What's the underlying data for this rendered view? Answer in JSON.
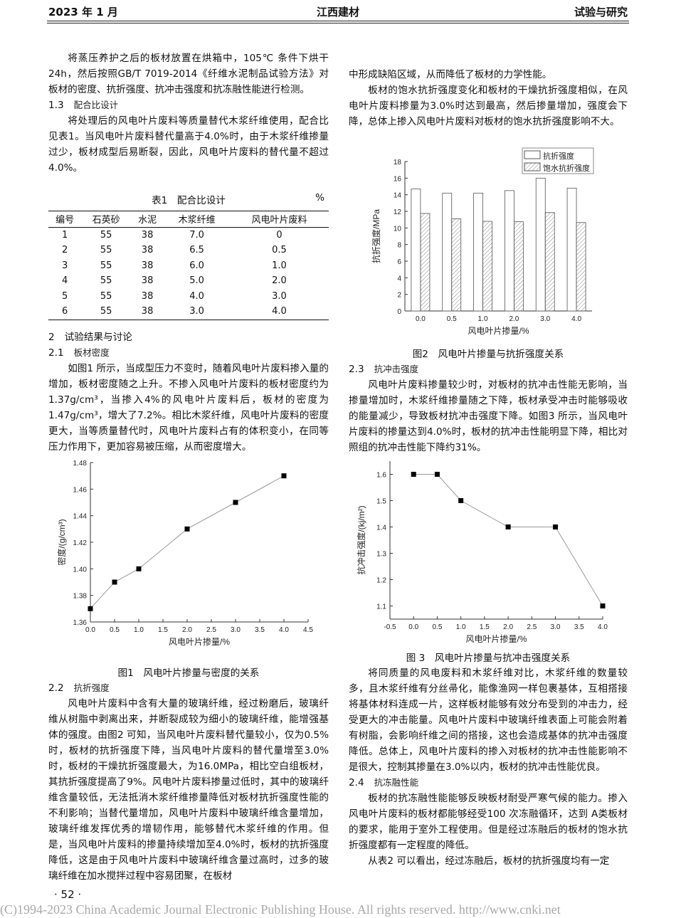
{
  "header": {
    "date": "2023 年 1 月",
    "journal": "江西建材",
    "column": "试验与研究"
  },
  "left": {
    "p1": "将蒸压养护之后的板材放置在烘箱中，105℃ 条件下烘干24h，然后按照GB/T 7019-2014《纤维水泥制品试验方法》对板材的密度、抗折强度、抗冲击强度和抗冻融性能进行检测。",
    "s13_num": "1.3",
    "s13_title": "配合比设计",
    "p2": "将处理后的风电叶片废料等质量替代木浆纤维使用，配合比见表1。当风电叶片废料替代量高于4.0%时，由于木浆纤维掺量过少，板材成型后易断裂，因此，风电叶片废料的替代量不超过4.0%。",
    "table": {
      "caption": "表1　配合比设计",
      "unit": "%",
      "headers": [
        "编号",
        "石英砂",
        "水泥",
        "木浆纤维",
        "风电叶片废料"
      ],
      "rows": [
        [
          "1",
          "55",
          "38",
          "7.0",
          "0"
        ],
        [
          "2",
          "55",
          "38",
          "6.5",
          "0.5"
        ],
        [
          "3",
          "55",
          "38",
          "6.0",
          "1.0"
        ],
        [
          "4",
          "55",
          "38",
          "5.0",
          "2.0"
        ],
        [
          "5",
          "55",
          "38",
          "4.0",
          "3.0"
        ],
        [
          "6",
          "55",
          "38",
          "3.0",
          "4.0"
        ]
      ]
    },
    "s2_num": "2",
    "s2_title": "试验结果与讨论",
    "s21_num": "2.1",
    "s21_title": "板材密度",
    "p3": "如图1 所示，当成型压力不变时，随着风电叶片废料掺入量的增加，板材密度随之上升。不掺入风电叶片废料的板材密度约为1.37g/cm³，当掺入4%的风电叶片废料后，板材的密度为1.47g/cm³，增大了7.2%。相比木浆纤维，风电叶片废料的密度更大，当等质量替代时，风电叶片废料占有的体积变小，在同等压力作用下，更加容易被压缩，从而密度增大。",
    "fig1_caption": "图1　风电叶片掺量与密度的关系",
    "s22_num": "2.2",
    "s22_title": "抗折强度",
    "p4": "风电叶片废料中含有大量的玻璃纤维，经过粉磨后，玻璃纤维从树脂中剥离出来，并断裂成较为细小的玻璃纤维，能增强基体的强度。由图2 可知，当风电叶片废料替代量较小，仅为0.5%时，板材的抗折强度下降，当风电叶片废料的替代量增至3.0%时，板材的干燥抗折强度最大，为16.0MPa，相比空白组板材，其抗折强度提高了9%。风电叶片废料掺量过低时，其中的玻璃纤维含量较低，无法抵消木浆纤维掺量降低对板材抗折强度性能的不利影响；当替代量增加，风电叶片废料中玻璃纤维含量增加，玻璃纤维发挥优秀的增韧作用，能够替代木浆纤维的作用。但是，当风电叶片废料的掺量持续增加至4.0%时，板材的抗折强度降低，这是由于风电叶片废料中玻璃纤维含量过高时，过多的玻璃纤维在加水搅拌过程中容易团聚，在板材"
  },
  "right": {
    "p1": "中形成缺陷区域，从而降低了板材的力学性能。",
    "p2": "板材的饱水抗折强度变化和板材的干燥抗折强度相似，在风电叶片废料掺量为3.0%时达到最高，然后掺量增加，强度会下降，总体上掺入风电叶片废料对板材的饱水抗折强度影响不大。",
    "fig2_caption": "图2　风电叶片掺量与抗折强度关系",
    "s23_num": "2.3",
    "s23_title": "抗冲击强度",
    "p3": "风电叶片废料掺量较少时，对板材的抗冲击性能无影响，当掺量增加时，木浆纤维掺量随之下降，板材承受冲击时能够吸收的能量减少，导致板材抗冲击强度下降。如图3 所示，当风电叶片废料的掺量达到4.0%时，板材的抗冲击性能明显下降，相比对照组的抗冲击性能下降约31%。",
    "fig3_caption": "图 3　风电叶片掺量与抗冲击强度关系",
    "p4": "将同质量的风电废料和木浆纤维对比，木浆纤维的数量较多，且木浆纤维有分丝帚化，能像渔网一样包裹基体，互相搭接将基体材料连成一片，这样板材能够有效分布受到的冲击力，经受更大的冲击能量。风电叶片废料中玻璃纤维表面上可能会附着有树脂，会影响纤维之间的搭接，这也会造成基体的抗冲击强度降低。总体上，风电叶片废料的掺入对板材的抗冲击性能影响不是很大，控制其掺量在3.0%以内，板材的抗冲击性能优良。",
    "s24_num": "2.4",
    "s24_title": "抗冻融性能",
    "p5": "板材的抗冻融性能能够反映板材耐受严寒气候的能力。掺入风电叶片废料的板材都能够经受100 次冻融循环，达到 A类板材的要求，能用于室外工程使用。但是经过冻融后的板材的饱水抗折强度都有一定程度的降低。",
    "p6": "从表2 可以看出，经过冻融后，板材的抗折强度均有一定"
  },
  "footer": {
    "page": "· 52 ·",
    "copyright": "(C)1994-2023 China Academic Journal Electronic Publishing House. All rights reserved.    http://www.cnki.net"
  },
  "chart_data": [
    {
      "type": "line",
      "x": [
        0.0,
        0.5,
        1.0,
        2.0,
        3.0,
        4.0
      ],
      "values": [
        1.37,
        1.39,
        1.4,
        1.43,
        1.45,
        1.47
      ],
      "xlabel": "风电叶片掺量/%",
      "ylabel": "密度/(g/cm³)",
      "xlim": [
        0,
        4.5
      ],
      "ylim": [
        1.36,
        1.48
      ],
      "xticks": [
        "0.0",
        "0.5",
        "1.0",
        "1.5",
        "2.0",
        "2.5",
        "3.0",
        "3.5",
        "4.0",
        "4.5"
      ],
      "yticks": [
        "1.36",
        "1.38",
        "1.40",
        "1.42",
        "1.44",
        "1.46",
        "1.48"
      ],
      "grid": false,
      "marker": "square"
    },
    {
      "type": "bar",
      "categories": [
        "0.0",
        "0.5",
        "1.0",
        "2.0",
        "3.0",
        "4.0"
      ],
      "series": [
        {
          "name": "抗折强度",
          "values": [
            14.7,
            14.2,
            14.2,
            14.5,
            16.0,
            14.8
          ],
          "fill": "#ffffff"
        },
        {
          "name": "饱水抗折强度",
          "values": [
            11.75,
            11.1,
            10.8,
            10.75,
            11.85,
            10.65
          ],
          "fill": "hatched"
        }
      ],
      "xlabel": "风电叶片掺量/%",
      "ylabel": "抗折强度/MPa",
      "ylim": [
        0,
        18
      ],
      "yticks": [
        "0",
        "2",
        "4",
        "6",
        "8",
        "10",
        "12",
        "14",
        "16",
        "18"
      ],
      "legend": "top-right",
      "grid": false
    },
    {
      "type": "line",
      "x": [
        0.0,
        0.5,
        1.0,
        2.0,
        3.0,
        4.0
      ],
      "values": [
        1.6,
        1.6,
        1.5,
        1.4,
        1.4,
        1.1
      ],
      "xlabel": "风电叶片掺量/%",
      "ylabel": "抗冲击强度/(kj/m²)",
      "xlim": [
        -0.5,
        4.0
      ],
      "ylim": [
        1.05,
        1.65
      ],
      "xticks": [
        "-0.5",
        "0.0",
        "0.5",
        "1.0",
        "1.5",
        "2.0",
        "2.5",
        "3.0",
        "3.5",
        "4.0"
      ],
      "yticks": [
        "1.1",
        "1.2",
        "1.3",
        "1.4",
        "1.5",
        "1.6"
      ],
      "grid": false,
      "marker": "square"
    }
  ]
}
